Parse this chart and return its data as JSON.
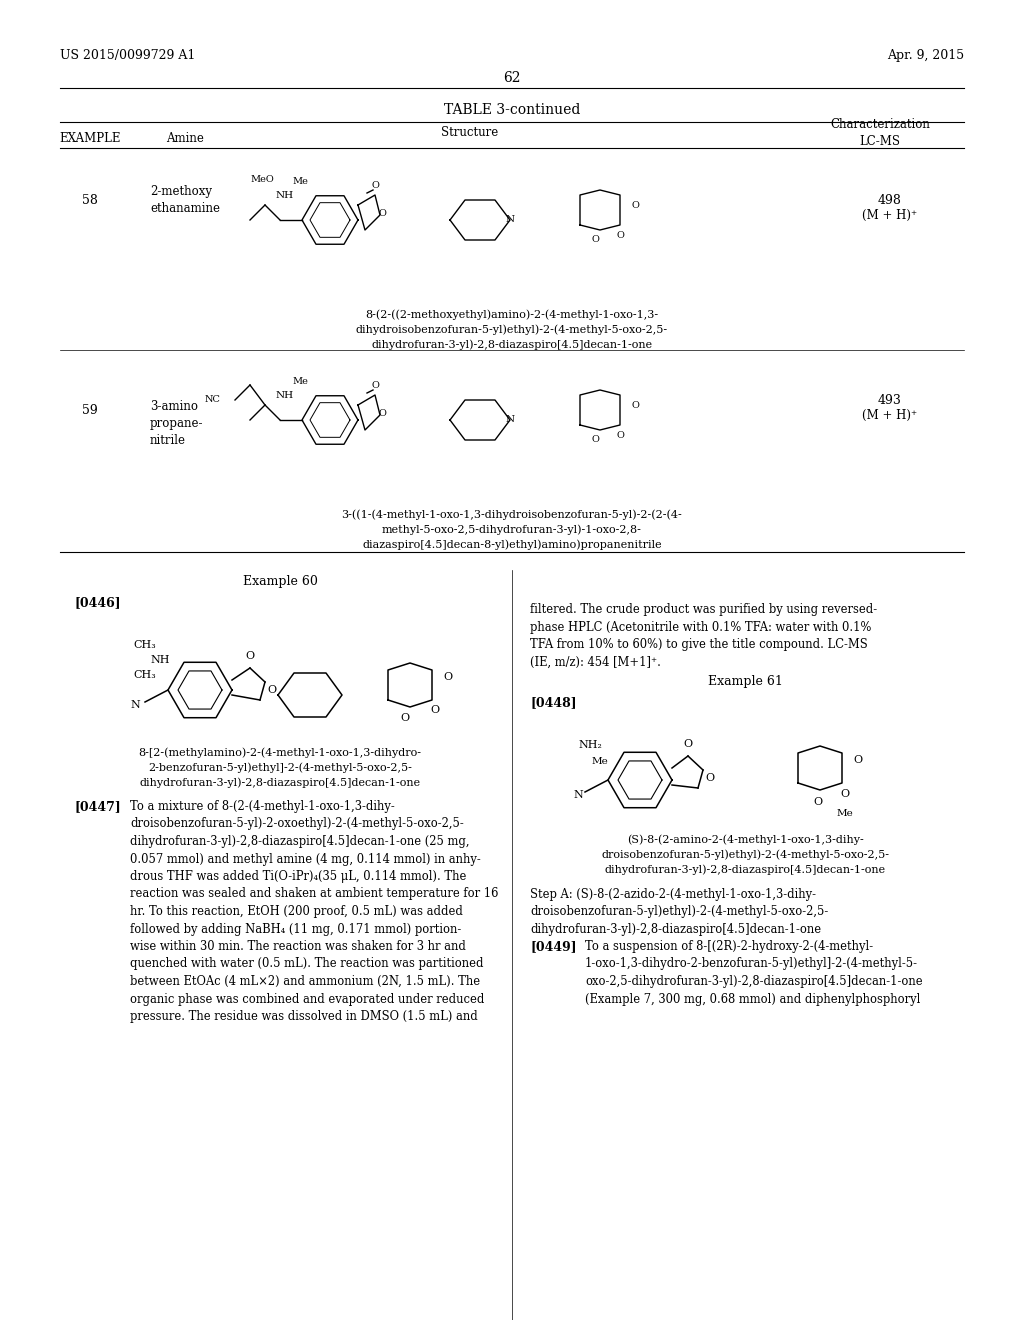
{
  "page_width": 10.24,
  "page_height": 13.2,
  "bg_color": "#ffffff",
  "header_left": "US 2015/0099729 A1",
  "header_right": "Apr. 9, 2015",
  "page_number": "62",
  "table_title": "TABLE 3-continued",
  "col_headers": [
    "EXAMPLE",
    "Amine",
    "Structure",
    "Characterization\nLC-MS"
  ],
  "example_58_num": "58",
  "example_58_amine": "2-methoxy\nethanamine",
  "example_58_ms": "498\n(M + H)⁺",
  "example_58_name": "8-(2-((2-methoxyethyl)amino)-2-(4-methyl-1-oxo-1,3-\ndihydroisobenzofuran-5-yl)ethyl)-2-(4-methyl-5-oxo-2,5-\ndihydrofuran-3-yl)-2,8-diazaspiro[4.5]decan-1-one",
  "example_59_num": "59",
  "example_59_amine": "3-amino\npropane-\nnitrile",
  "example_59_ms": "493\n(M + H)⁺",
  "example_59_name": "3-((1-(4-methyl-1-oxo-1,3-dihydroisobenzofuran-5-yl)-2-(2-(4-\nmethyl-5-oxo-2,5-dihydrofuran-3-yl)-1-oxo-2,8-\ndiazaspiro[4.5]decan-8-yl)ethyl)amino)propanenitrile",
  "ex60_title": "Example 60",
  "ex60_tag": "[0446]",
  "ex60_name": "8-[2-(methylamino)-2-(4-methyl-1-oxo-1,3-dihydro-\n2-benzofuran-5-yl)ethyl]-2-(4-methyl-5-oxo-2,5-\ndihydrofuran-3-yl)-2,8-diazaspiro[4.5]decan-1-one",
  "ex60_text_tag": "[0447]",
  "ex60_body": "To a mixture of 8-(2-(4-methyl-1-oxo-1,3-dihy-\ndroisobenzofuran-5-yl)-2-oxoethyl)-2-(4-methyl-5-oxo-2,5-\ndihydrofuran-3-yl)-2,8-diazaspiro[4.5]decan-1-one (25 mg,\n0.057 mmol) and methyl amine (4 mg, 0.114 mmol) in anhy-\ndrous THF was added Ti(O-iPr)₄(35 μL, 0.114 mmol). The\nreaction was sealed and shaken at ambient temperature for 16\nhr. To this reaction, EtOH (200 proof, 0.5 mL) was added\nfollowed by adding NaBH₄ (11 mg, 0.171 mmol) portion-\nwise within 30 min. The reaction was shaken for 3 hr and\nquenched with water (0.5 mL). The reaction was partitioned\nbetween EtOAc (4 mL×2) and ammonium (2N, 1.5 mL). The\norganic phase was combined and evaporated under reduced\npressure. The residue was dissolved in DMSO (1.5 mL) and",
  "right_col_text": "filtered. The crude product was purified by using reversed-\nphase HPLC (Acetonitrile with 0.1% TFA: water with 0.1%\nTFA from 10% to 60%) to give the title compound. LC-MS\n(IE, m/z): 454 [M+1]⁺.",
  "ex61_title": "Example 61",
  "ex61_tag": "[0448]",
  "ex61_name": "(S)-8-(2-amino-2-(4-methyl-1-oxo-1,3-dihy-\ndroisobenzofuran-5-yl)ethyl)-2-(4-methyl-5-oxo-2,5-\ndihydrofuran-3-yl)-2,8-diazaspiro[4.5]decan-1-one",
  "ex61_step": "Step A: (S)-8-(2-azido-2-(4-methyl-1-oxo-1,3-dihy-\ndroisobenzofuran-5-yl)ethyl)-2-(4-methyl-5-oxo-2,5-\ndihydrofuran-3-yl)-2,8-diazaspiro[4.5]decan-1-one",
  "ex61_text_tag": "[0449]",
  "ex61_body": "To a suspension of 8-[(2R)-2-hydroxy-2-(4-methyl-\n1-oxo-1,3-dihydro-2-benzofuran-5-yl)ethyl]-2-(4-methyl-5-\noxo-2,5-dihydrofuran-3-yl)-2,8-diazaspiro[4.5]decan-1-one\n(Example 7, 300 mg, 0.68 mmol) and diphenylphosphoryl"
}
